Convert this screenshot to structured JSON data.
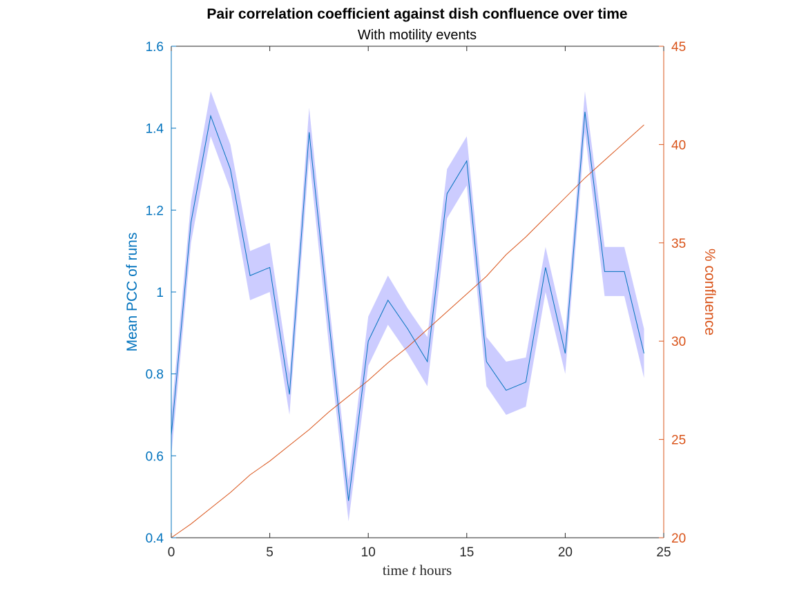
{
  "chart_data": {
    "type": "line",
    "title": "Pair correlation coefficient against dish confluence over time",
    "subtitle": "With motility events",
    "xlabel": "time t hours",
    "xlabel_parts": {
      "before": "time ",
      "var": "t",
      "after": " hours"
    },
    "ylabel_left": "Mean PCC of runs",
    "ylabel_right": "% confluence",
    "xlim": [
      0,
      25
    ],
    "ylim_left": [
      0.4,
      1.6
    ],
    "ylim_right": [
      20,
      45
    ],
    "x_ticks": [
      "0",
      "5",
      "10",
      "15",
      "20",
      "25"
    ],
    "y_ticks_left": [
      "0.4",
      "0.6",
      "0.8",
      "1",
      "1.2",
      "1.4",
      "1.6"
    ],
    "y_ticks_right": [
      "20",
      "25",
      "30",
      "35",
      "40",
      "45"
    ],
    "grid": false,
    "colors": {
      "left": "#0072BD",
      "right": "#D95319",
      "band": "#CCCCFF",
      "axis": "#262626"
    },
    "series": [
      {
        "axis": "left",
        "x": [
          0,
          1,
          2,
          3,
          4,
          5,
          6,
          7,
          8,
          9,
          10,
          11,
          12,
          13,
          14,
          15,
          16,
          17,
          18,
          19,
          20,
          21,
          22,
          23,
          24
        ],
        "values": [
          0.65,
          1.17,
          1.43,
          1.3,
          1.04,
          1.06,
          0.75,
          1.39,
          0.93,
          0.49,
          0.88,
          0.98,
          0.91,
          0.83,
          1.24,
          1.32,
          0.83,
          0.76,
          0.78,
          1.06,
          0.85,
          1.44,
          1.05,
          1.05,
          0.85
        ],
        "band_upper": [
          0.7,
          1.22,
          1.49,
          1.36,
          1.1,
          1.12,
          0.8,
          1.45,
          0.98,
          0.54,
          0.94,
          1.04,
          0.96,
          0.89,
          1.3,
          1.38,
          0.89,
          0.83,
          0.84,
          1.11,
          0.9,
          1.49,
          1.11,
          1.11,
          0.91
        ],
        "band_lower": [
          0.6,
          1.12,
          1.38,
          1.25,
          0.98,
          1.0,
          0.7,
          1.33,
          0.87,
          0.44,
          0.82,
          0.92,
          0.85,
          0.77,
          1.18,
          1.26,
          0.77,
          0.7,
          0.72,
          1.0,
          0.8,
          1.39,
          0.99,
          0.99,
          0.79
        ]
      },
      {
        "axis": "right",
        "x": [
          0,
          1,
          2,
          3,
          4,
          5,
          6,
          7,
          8,
          9,
          10,
          11,
          12,
          13,
          14,
          15,
          16,
          17,
          18,
          19,
          20,
          21,
          22,
          23,
          24
        ],
        "values": [
          20.0,
          20.7,
          21.5,
          22.3,
          23.2,
          23.9,
          24.7,
          25.5,
          26.4,
          27.2,
          28.0,
          28.9,
          29.7,
          30.6,
          31.5,
          32.4,
          33.3,
          34.4,
          35.3,
          36.3,
          37.3,
          38.3,
          39.2,
          40.1,
          41.0
        ]
      }
    ]
  }
}
